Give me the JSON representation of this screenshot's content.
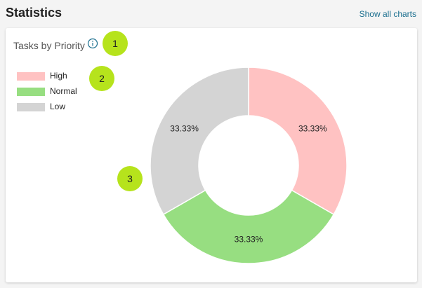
{
  "header": {
    "title": "Statistics",
    "show_all_label": "Show all charts"
  },
  "card": {
    "title": "Tasks by Priority",
    "info_icon": "info-icon"
  },
  "colors": {
    "high": "#ffc2c2",
    "normal": "#97de81",
    "low": "#d4d4d4",
    "badge": "#b6e31c",
    "link": "#1a6e8e"
  },
  "badges": [
    "1",
    "2",
    "3"
  ],
  "chart_data": {
    "type": "pie",
    "categories": [
      "High",
      "Normal",
      "Low"
    ],
    "values": [
      33.33,
      33.33,
      33.33
    ],
    "labels": [
      "33.33%",
      "33.33%",
      "33.33%"
    ],
    "colors": [
      "#ffc2c2",
      "#97de81",
      "#d4d4d4"
    ],
    "legend_position": "top-left",
    "donut": true
  }
}
